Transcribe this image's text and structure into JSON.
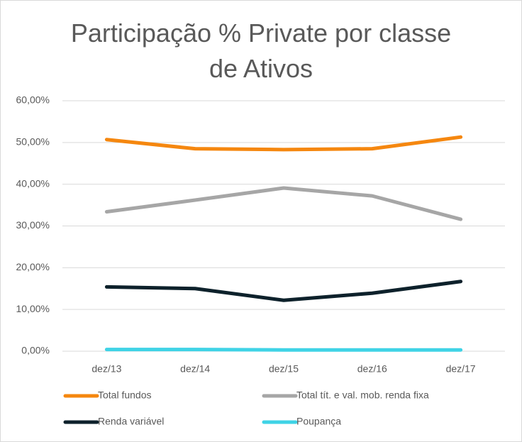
{
  "chart_data": {
    "type": "line",
    "title": "Participação % Private por classe de Ativos",
    "categories": [
      "dez/13",
      "dez/14",
      "dez/15",
      "dez/16",
      "dez/17"
    ],
    "series": [
      {
        "name": "Total fundos",
        "color": "#f5870f",
        "values": [
          50.7,
          48.5,
          48.3,
          48.5,
          51.3
        ]
      },
      {
        "name": "Total tít. e val. mob. renda fixa",
        "color": "#a6a6a6",
        "values": [
          33.4,
          36.2,
          39.1,
          37.2,
          31.6
        ]
      },
      {
        "name": "Renda variável",
        "color": "#0d212b",
        "values": [
          15.4,
          15.0,
          12.2,
          13.9,
          16.7
        ]
      },
      {
        "name": "Poupança",
        "color": "#3fd3e6",
        "values": [
          0.4,
          0.4,
          0.3,
          0.3,
          0.3
        ]
      }
    ],
    "ylim": [
      0,
      60
    ],
    "yticks": [
      {
        "value": 0,
        "label": "0,00%"
      },
      {
        "value": 10,
        "label": "10,00%"
      },
      {
        "value": 20,
        "label": "20,00%"
      },
      {
        "value": 30,
        "label": "30,00%"
      },
      {
        "value": 40,
        "label": "40,00%"
      },
      {
        "value": 50,
        "label": "50,00%"
      },
      {
        "value": 60,
        "label": "60,00%"
      }
    ],
    "grid": true,
    "legend": "bottom"
  }
}
